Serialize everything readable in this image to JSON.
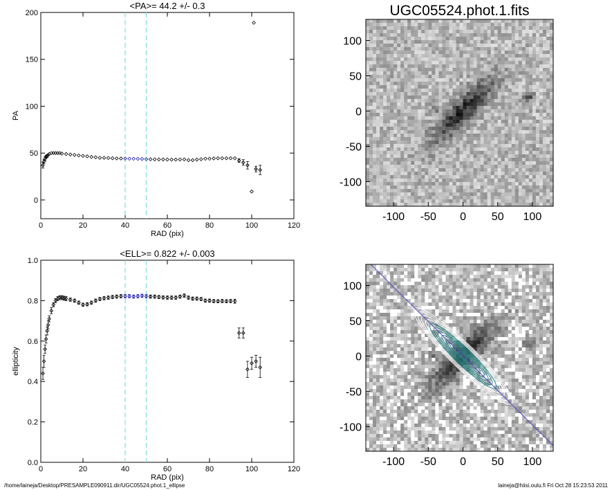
{
  "figure": {
    "footer_left": "/home/laineja/Desktop/PRESAMPLE090911.dir/UGC05524.phot.1_ellipse",
    "footer_right": "laineja@hiisi.oulu.fi  Fri Oct 28 15:23:53 2011"
  },
  "chart_data": [
    {
      "type": "scatter",
      "title": "<PA>=  44.2 +/-   0.3",
      "xlabel": "RAD (pix)",
      "ylabel": "PA",
      "xlim": [
        0,
        120
      ],
      "ylim": [
        -20,
        200
      ],
      "xticks": [
        0,
        20,
        40,
        60,
        80,
        100,
        120
      ],
      "yticks": [
        0,
        50,
        100,
        150,
        200
      ],
      "xtick_labels": [
        "0",
        "20",
        "40",
        "60",
        "80",
        "100",
        "120"
      ],
      "ytick_labels": [
        "0",
        "50",
        "100",
        "150",
        "200"
      ],
      "vlines": [
        40,
        50
      ],
      "highlight_range": [
        40,
        50
      ],
      "colors": {
        "points": "#000000",
        "highlight": "#1a1aa8",
        "vline": "#7fe0e0"
      },
      "series": [
        {
          "x": [
            1,
            1.5,
            2,
            2.5,
            3,
            3.5,
            4,
            5,
            6,
            7,
            8,
            9,
            10,
            12,
            14,
            16,
            18,
            20,
            22,
            24,
            26,
            28,
            30,
            32,
            34,
            36,
            38,
            40,
            42,
            44,
            46,
            48,
            50,
            52,
            54,
            56,
            58,
            60,
            62,
            64,
            66,
            68,
            70,
            72,
            74,
            76,
            78,
            80,
            82,
            84,
            86,
            88,
            90,
            92,
            94,
            96,
            98,
            100,
            101,
            102,
            104
          ],
          "y": [
            37,
            41,
            44,
            46,
            47,
            48,
            49,
            50,
            50,
            50,
            50,
            50,
            49.5,
            49,
            48.5,
            48,
            47.5,
            47,
            46.5,
            46,
            45.5,
            45,
            45,
            44.8,
            44.5,
            44.3,
            44.2,
            44.1,
            44,
            44,
            43.9,
            43.8,
            43.6,
            43.4,
            43.3,
            43.2,
            43.2,
            43.1,
            43,
            43,
            43.1,
            43.3,
            42.5,
            42.5,
            43,
            43.5,
            44,
            44,
            44.3,
            44.5,
            44.5,
            44.5,
            44.5,
            44.5,
            42,
            40,
            37,
            9,
            189,
            33,
            32
          ],
          "err": [
            3,
            2,
            2,
            1.5,
            1.5,
            1,
            1,
            1,
            1,
            1,
            1,
            1,
            1,
            0.8,
            0.8,
            0.8,
            0.8,
            0.8,
            0.8,
            0.8,
            0.8,
            0.8,
            0.8,
            0.8,
            0.8,
            0.8,
            0.8,
            0.8,
            0.8,
            0.8,
            0.8,
            0.8,
            0.8,
            0.8,
            0.8,
            0.8,
            0.8,
            0.8,
            0.8,
            0.8,
            0.8,
            0.8,
            0.8,
            0.8,
            0.8,
            0.8,
            0.8,
            0.8,
            0.8,
            0.8,
            0.8,
            0.8,
            0.8,
            1,
            2,
            3,
            4,
            0,
            0,
            3,
            5
          ]
        }
      ]
    },
    {
      "type": "scatter",
      "title": "<ELL>= 0.822 +/-  0.003",
      "xlabel": "RAD (pix)",
      "ylabel": "ellipticity",
      "xlim": [
        0,
        120
      ],
      "ylim": [
        0,
        1
      ],
      "xticks": [
        0,
        20,
        40,
        60,
        80,
        100,
        120
      ],
      "yticks": [
        0,
        0.2,
        0.4,
        0.6,
        0.8,
        1.0
      ],
      "xtick_labels": [
        "0",
        "20",
        "40",
        "60",
        "80",
        "100",
        "120"
      ],
      "ytick_labels": [
        "0.0",
        "0.2",
        "0.4",
        "0.6",
        "0.8",
        "1.0"
      ],
      "vlines": [
        40,
        50
      ],
      "highlight_range": [
        40,
        50
      ],
      "colors": {
        "points": "#000000",
        "highlight": "#1a1aa8",
        "vline": "#7fe0e0"
      },
      "series": [
        {
          "x": [
            1,
            1.5,
            2,
            2.5,
            3,
            3.5,
            4,
            5,
            6,
            7,
            8,
            9,
            10,
            11,
            12,
            14,
            16,
            18,
            20,
            22,
            24,
            26,
            28,
            30,
            32,
            34,
            36,
            38,
            40,
            42,
            44,
            46,
            48,
            50,
            52,
            54,
            56,
            58,
            60,
            62,
            64,
            66,
            68,
            70,
            72,
            74,
            76,
            78,
            80,
            82,
            84,
            86,
            88,
            90,
            92,
            94,
            96,
            98,
            100,
            102,
            104
          ],
          "y": [
            0.44,
            0.5,
            0.56,
            0.61,
            0.65,
            0.68,
            0.71,
            0.75,
            0.78,
            0.8,
            0.81,
            0.815,
            0.815,
            0.812,
            0.81,
            0.805,
            0.8,
            0.79,
            0.78,
            0.782,
            0.79,
            0.8,
            0.808,
            0.812,
            0.815,
            0.818,
            0.82,
            0.822,
            0.822,
            0.822,
            0.82,
            0.822,
            0.824,
            0.822,
            0.82,
            0.82,
            0.818,
            0.816,
            0.815,
            0.815,
            0.815,
            0.82,
            0.825,
            0.815,
            0.81,
            0.81,
            0.808,
            0.8,
            0.8,
            0.798,
            0.797,
            0.798,
            0.797,
            0.798,
            0.797,
            0.64,
            0.64,
            0.46,
            0.49,
            0.5,
            0.47
          ],
          "err": [
            0.03,
            0.03,
            0.02,
            0.02,
            0.02,
            0.02,
            0.015,
            0.015,
            0.01,
            0.01,
            0.01,
            0.01,
            0.01,
            0.01,
            0.01,
            0.008,
            0.008,
            0.008,
            0.008,
            0.008,
            0.008,
            0.008,
            0.008,
            0.008,
            0.008,
            0.008,
            0.008,
            0.008,
            0.008,
            0.008,
            0.008,
            0.008,
            0.008,
            0.008,
            0.008,
            0.008,
            0.008,
            0.008,
            0.008,
            0.008,
            0.008,
            0.008,
            0.008,
            0.008,
            0.008,
            0.008,
            0.008,
            0.008,
            0.008,
            0.008,
            0.008,
            0.008,
            0.008,
            0.008,
            0.01,
            0.025,
            0.025,
            0.04,
            0.03,
            0.03,
            0.05
          ]
        }
      ]
    },
    {
      "type": "heatmap",
      "title": "UGC05524.phot.1.fits",
      "xlim": [
        -140,
        130
      ],
      "ylim": [
        -135,
        130
      ],
      "xticks": [
        -100,
        -50,
        0,
        50,
        100
      ],
      "yticks": [
        -100,
        -50,
        0,
        50,
        100
      ],
      "xtick_labels": [
        "-100",
        "-50",
        "0",
        "50",
        "100"
      ],
      "ytick_labels": [
        "-100",
        "-50",
        "0",
        "50",
        "100"
      ],
      "colormap": "inverted grayscale"
    },
    {
      "type": "heatmap",
      "title": "",
      "xlim": [
        -140,
        130
      ],
      "ylim": [
        -135,
        130
      ],
      "xticks": [
        -100,
        -50,
        0,
        50,
        100
      ],
      "yticks": [
        -100,
        -50,
        0,
        50,
        100
      ],
      "xtick_labels": [
        "-100",
        "-50",
        "0",
        "50",
        "100"
      ],
      "ytick_labels": [
        "-100",
        "-50",
        "0",
        "50",
        "100"
      ],
      "colormap": "inverted grayscale with ellipse contours",
      "pa_line_angle_deg": 44.2,
      "colors": {
        "pa_line": "#4a4ac8",
        "contour": "#2a8a8a",
        "contour_outer": "#ffffff"
      }
    }
  ]
}
